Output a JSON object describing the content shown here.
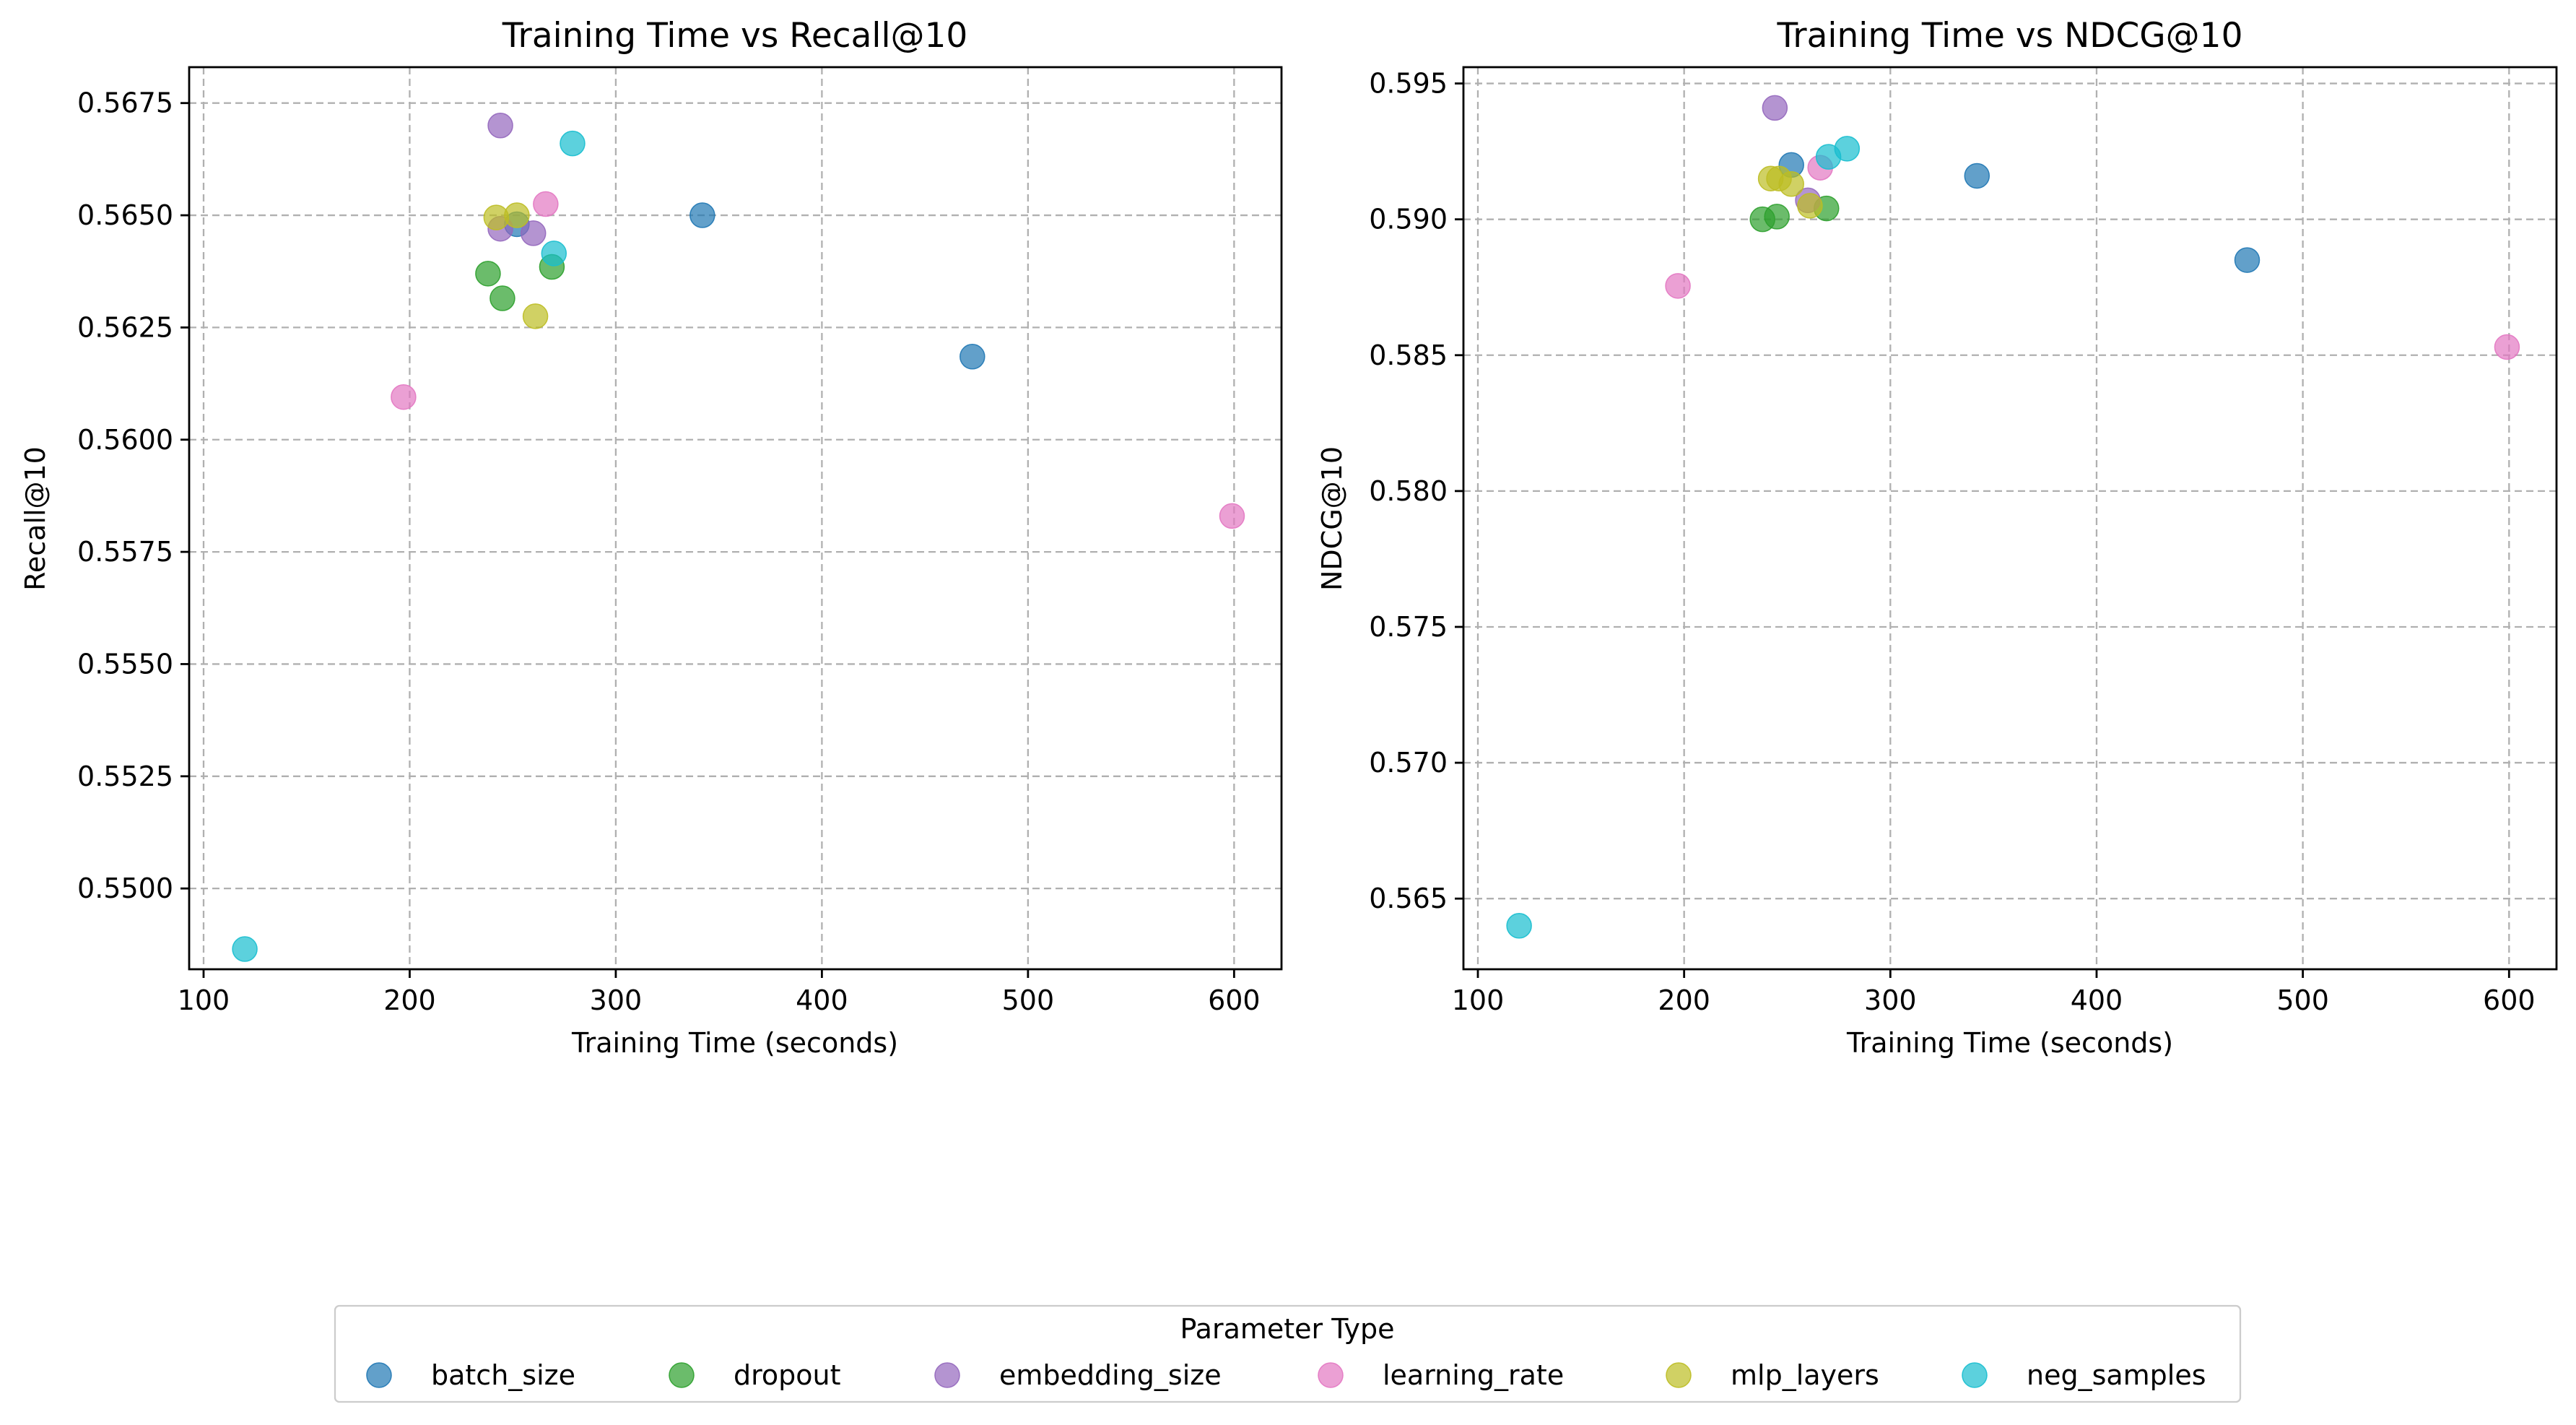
{
  "chart_data": [
    {
      "type": "scatter",
      "title": "Training Time vs Recall@10",
      "xlabel": "Training Time (seconds)",
      "ylabel": "Recall@10",
      "xlim": [
        93,
        623
      ],
      "ylim": [
        0.5482,
        0.5683
      ],
      "xticks": [
        100,
        200,
        300,
        400,
        500,
        600
      ],
      "xtick_labels": [
        "100",
        "200",
        "300",
        "400",
        "500",
        "600"
      ],
      "yticks": [
        0.55,
        0.5525,
        0.555,
        0.5575,
        0.56,
        0.5625,
        0.565,
        0.5675
      ],
      "ytick_labels": [
        "0.5500",
        "0.5525",
        "0.5550",
        "0.5575",
        "0.5600",
        "0.5625",
        "0.5650",
        "0.5675"
      ],
      "grid": true,
      "series": [
        {
          "name": "batch_size",
          "color": "#1f77b4",
          "points": [
            [
              252,
              0.5648
            ],
            [
              342,
              0.565
            ],
            [
              473,
              0.56185
            ]
          ]
        },
        {
          "name": "dropout",
          "color": "#2ca02c",
          "points": [
            [
              238,
              0.5637
            ],
            [
              245,
              0.56315
            ],
            [
              269,
              0.56385
            ]
          ]
        },
        {
          "name": "embedding_size",
          "color": "#9467bd",
          "points": [
            [
              244,
              0.567
            ],
            [
              244,
              0.5647
            ],
            [
              260,
              0.5646
            ]
          ]
        },
        {
          "name": "learning_rate",
          "color": "#e377c2",
          "points": [
            [
              197,
              0.56095
            ],
            [
              266,
              0.56525
            ],
            [
              599,
              0.5583
            ]
          ]
        },
        {
          "name": "mlp_layers",
          "color": "#bcbd22",
          "points": [
            [
              242,
              0.56495
            ],
            [
              252,
              0.565
            ],
            [
              261,
              0.56275
            ]
          ]
        },
        {
          "name": "neg_samples",
          "color": "#17becf",
          "points": [
            [
              120,
              0.54865
            ],
            [
              270,
              0.56415
            ],
            [
              279,
              0.5666
            ]
          ]
        }
      ]
    },
    {
      "type": "scatter",
      "title": "Training Time vs NDCG@10",
      "xlabel": "Training Time (seconds)",
      "ylabel": "NDCG@10",
      "xlim": [
        93,
        623
      ],
      "ylim": [
        0.5624,
        0.5956
      ],
      "xticks": [
        100,
        200,
        300,
        400,
        500,
        600
      ],
      "xtick_labels": [
        "100",
        "200",
        "300",
        "400",
        "500",
        "600"
      ],
      "yticks": [
        0.565,
        0.57,
        0.575,
        0.58,
        0.585,
        0.59,
        0.595
      ],
      "ytick_labels": [
        "0.565",
        "0.570",
        "0.575",
        "0.580",
        "0.585",
        "0.590",
        "0.595"
      ],
      "grid": true,
      "series": [
        {
          "name": "batch_size",
          "color": "#1f77b4",
          "points": [
            [
              252,
              0.592
            ],
            [
              342,
              0.5916
            ],
            [
              473,
              0.5885
            ]
          ]
        },
        {
          "name": "dropout",
          "color": "#2ca02c",
          "points": [
            [
              238,
              0.59
            ],
            [
              245,
              0.5901
            ],
            [
              269,
              0.5904
            ]
          ]
        },
        {
          "name": "embedding_size",
          "color": "#9467bd",
          "points": [
            [
              244,
              0.5941
            ],
            [
              260,
              0.5907
            ]
          ]
        },
        {
          "name": "learning_rate",
          "color": "#e377c2",
          "points": [
            [
              197,
              0.58755
            ],
            [
              266,
              0.5919
            ],
            [
              599,
              0.5853
            ]
          ]
        },
        {
          "name": "mlp_layers",
          "color": "#bcbd22",
          "points": [
            [
              242,
              0.5915
            ],
            [
              246,
              0.5915
            ],
            [
              252,
              0.5913
            ],
            [
              261,
              0.5905
            ]
          ]
        },
        {
          "name": "neg_samples",
          "color": "#17becf",
          "points": [
            [
              120,
              0.564
            ],
            [
              270,
              0.5923
            ],
            [
              279,
              0.5926
            ]
          ]
        }
      ]
    }
  ],
  "legend": {
    "title": "Parameter Type",
    "placement": "bottom-center",
    "entries": [
      {
        "label": "batch_size",
        "color": "#1f77b4"
      },
      {
        "label": "dropout",
        "color": "#2ca02c"
      },
      {
        "label": "embedding_size",
        "color": "#9467bd"
      },
      {
        "label": "learning_rate",
        "color": "#e377c2"
      },
      {
        "label": "mlp_layers",
        "color": "#bcbd22"
      },
      {
        "label": "neg_samples",
        "color": "#17becf"
      }
    ]
  }
}
